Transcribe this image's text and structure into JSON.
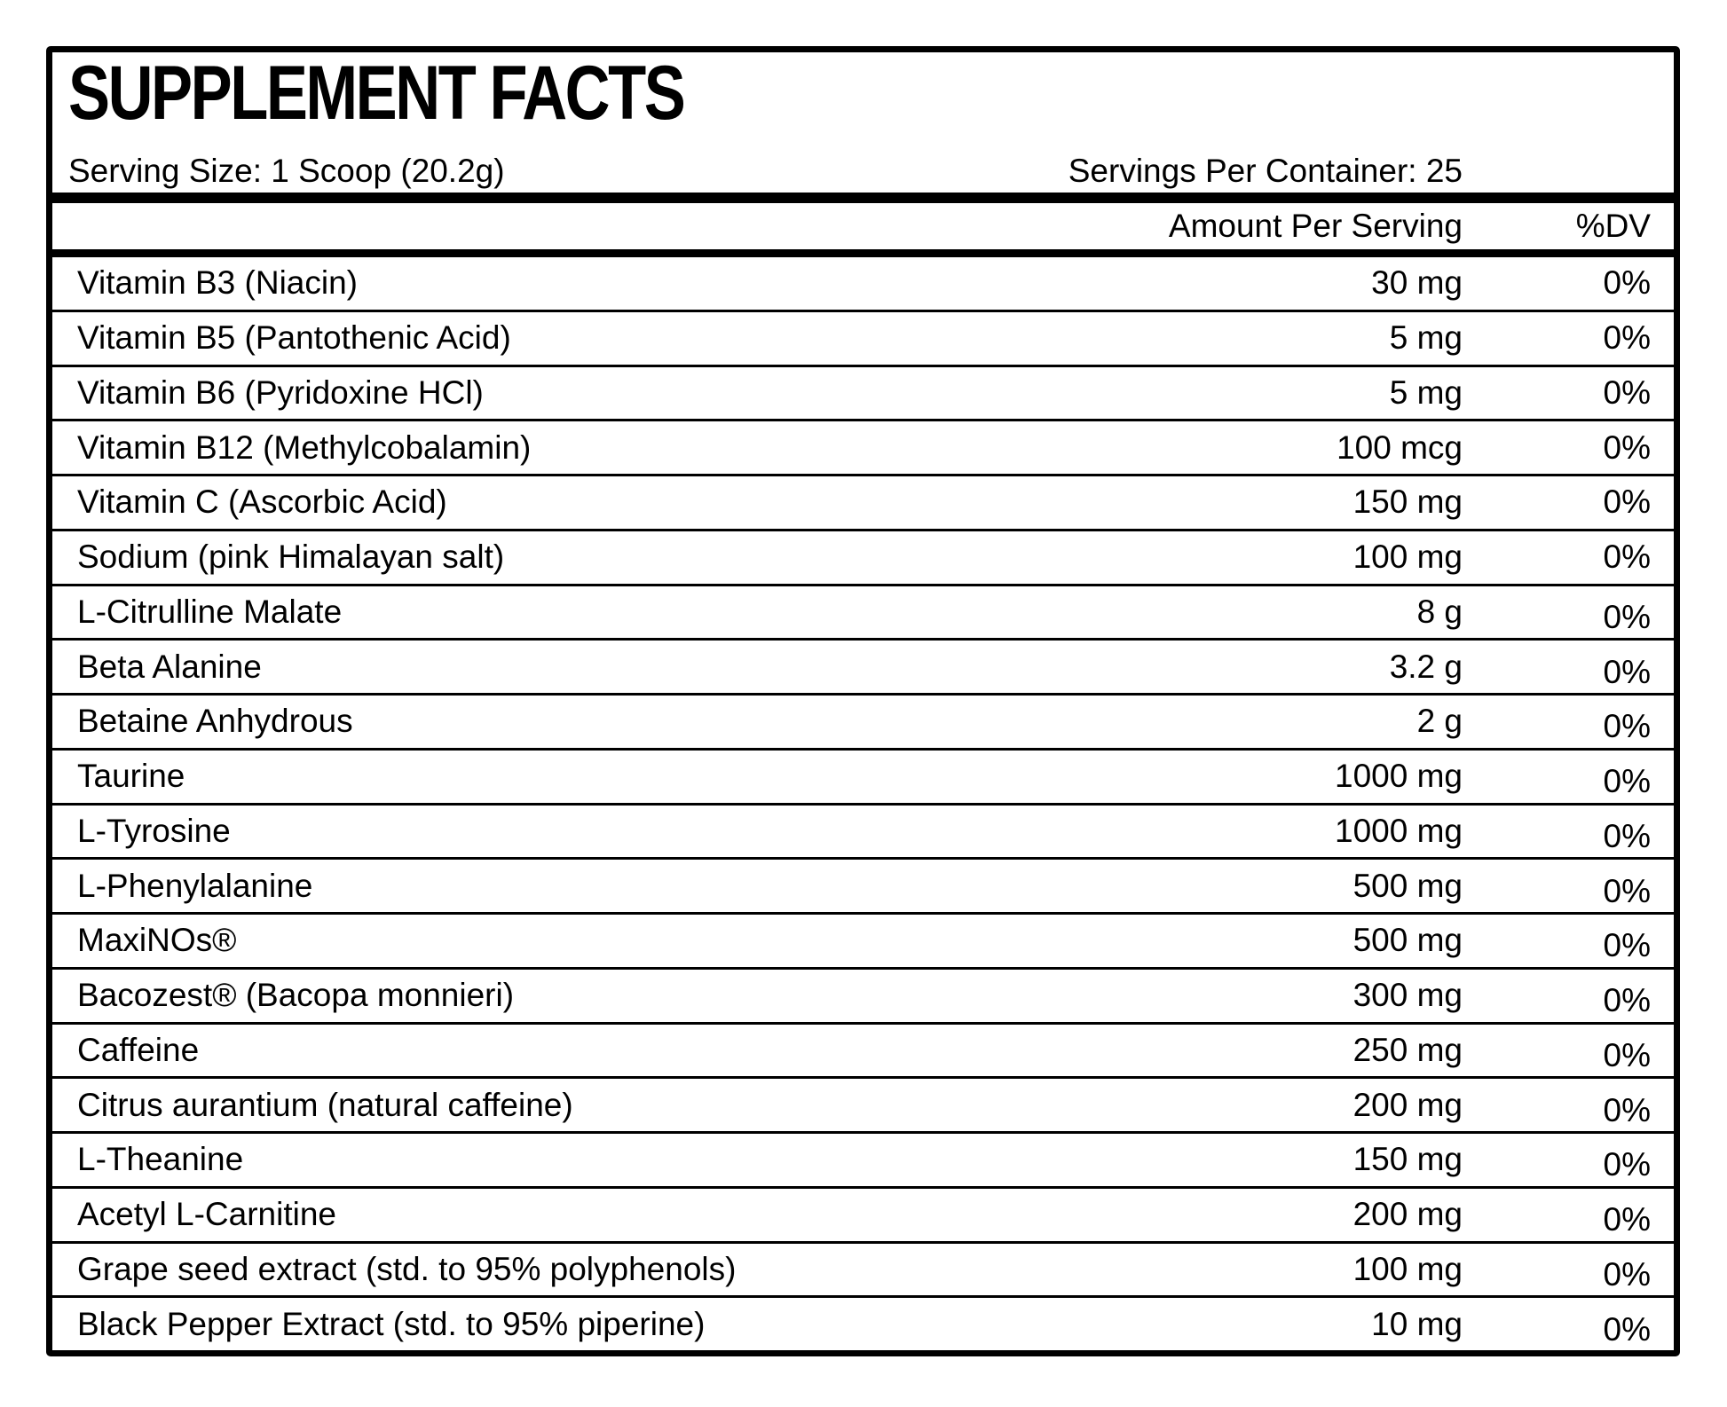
{
  "label": {
    "title": "SUPPLEMENT FACTS",
    "serving_size": "Serving Size: 1 Scoop (20.2g)",
    "servings_per_container": "Servings Per Container: 25",
    "columns": {
      "amount": "Amount Per Serving",
      "dv": "%DV"
    },
    "colors": {
      "ink": "#000000",
      "paper": "#ffffff"
    }
  },
  "rows": [
    {
      "name": "Vitamin B3 (Niacin)",
      "amount": "30 mg",
      "dv": "0%"
    },
    {
      "name": "Vitamin B5 (Pantothenic Acid)",
      "amount": "5 mg",
      "dv": "0%"
    },
    {
      "name": "Vitamin B6 (Pyridoxine HCl)",
      "amount": "5 mg",
      "dv": "0%"
    },
    {
      "name": "Vitamin B12 (Methylcobalamin)",
      "amount": "100 mcg",
      "dv": "0%"
    },
    {
      "name": "Vitamin C (Ascorbic Acid)",
      "amount": "150 mg",
      "dv": "0%"
    },
    {
      "name": "Sodium (pink Himalayan salt)",
      "amount": "100 mg",
      "dv": "0%"
    },
    {
      "name": "L-Citrulline Malate",
      "amount": "8 g",
      "dv": "0%"
    },
    {
      "name": "Beta Alanine",
      "amount": "3.2 g",
      "dv": "0%"
    },
    {
      "name": "Betaine Anhydrous",
      "amount": "2 g",
      "dv": "0%"
    },
    {
      "name": "Taurine",
      "amount": "1000 mg",
      "dv": "0%"
    },
    {
      "name": "L-Tyrosine",
      "amount": "1000 mg",
      "dv": "0%"
    },
    {
      "name": "L-Phenylalanine",
      "amount": "500 mg",
      "dv": "0%"
    },
    {
      "name": "MaxiNOs®",
      "amount": "500 mg",
      "dv": "0%"
    },
    {
      "name": "Bacozest® (Bacopa monnieri)",
      "amount": "300 mg",
      "dv": "0%"
    },
    {
      "name": "Caffeine",
      "amount": "250 mg",
      "dv": "0%"
    },
    {
      "name": "Citrus aurantium (natural caffeine)",
      "amount": "200 mg",
      "dv": "0%"
    },
    {
      "name": "L-Theanine",
      "amount": "150 mg",
      "dv": "0%"
    },
    {
      "name": "Acetyl L-Carnitine",
      "amount": "200 mg",
      "dv": "0%"
    },
    {
      "name": "Grape seed extract (std. to 95% polyphenols)",
      "amount": "100 mg",
      "dv": "0%"
    },
    {
      "name": "Black Pepper Extract (std. to 95% piperine)",
      "amount": "10 mg",
      "dv": "0%"
    }
  ]
}
